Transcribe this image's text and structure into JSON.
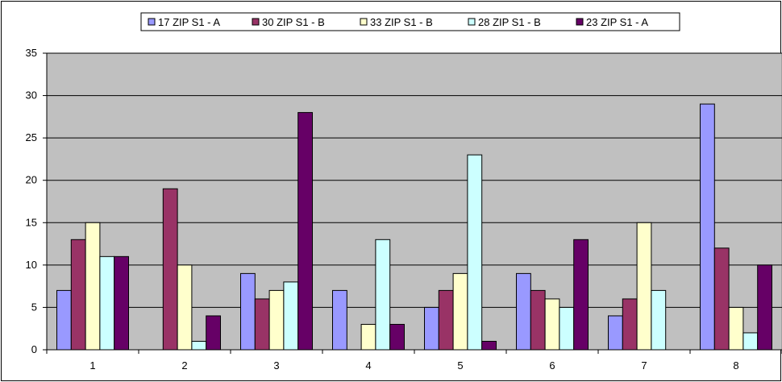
{
  "chart_data": {
    "type": "bar",
    "categories": [
      "1",
      "2",
      "3",
      "4",
      "5",
      "6",
      "7",
      "8"
    ],
    "series": [
      {
        "name": "17 ZIP S1 - A",
        "color": "#9999ff",
        "values": [
          7,
          0,
          9,
          7,
          5,
          9,
          4,
          29
        ]
      },
      {
        "name": "30 ZIP S1 - B",
        "color": "#993366",
        "values": [
          13,
          19,
          6,
          0,
          7,
          7,
          6,
          12
        ]
      },
      {
        "name": "33 ZIP S1 - B",
        "color": "#ffffcc",
        "values": [
          15,
          10,
          7,
          3,
          9,
          6,
          15,
          5
        ]
      },
      {
        "name": "28 ZIP S1 - B",
        "color": "#ccffff",
        "values": [
          11,
          1,
          8,
          13,
          23,
          5,
          7,
          2
        ]
      },
      {
        "name": "23 ZIP S1 - A",
        "color": "#660066",
        "values": [
          11,
          4,
          28,
          3,
          1,
          13,
          0,
          10
        ]
      }
    ],
    "yticks": [
      "0",
      "5",
      "10",
      "15",
      "20",
      "25",
      "30",
      "35"
    ],
    "ylim": [
      0,
      35
    ],
    "grid": true,
    "legend_position": "top",
    "plot_background": "#c0c0c0"
  }
}
